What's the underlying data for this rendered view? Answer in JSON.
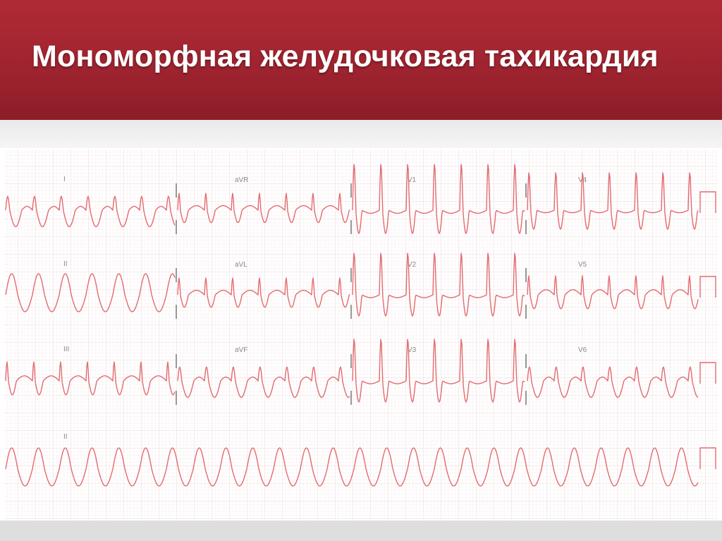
{
  "slide": {
    "title": "Мономорфная желудочковая тахикардия"
  },
  "ecg": {
    "leads_row1": [
      "I",
      "aVR",
      "V1",
      "V4"
    ],
    "leads_row2": [
      "II",
      "aVL",
      "V2",
      "V5"
    ],
    "leads_row3": [
      "III",
      "aVF",
      "V3",
      "V6"
    ],
    "rhythm_lead": "II",
    "colors": {
      "trace": "#e36b70",
      "grid_minor": "#f1dfe1",
      "grid_major": "#e7c7cb",
      "calibration_marks": "#555555",
      "title_bar": "#a3262f"
    }
  }
}
